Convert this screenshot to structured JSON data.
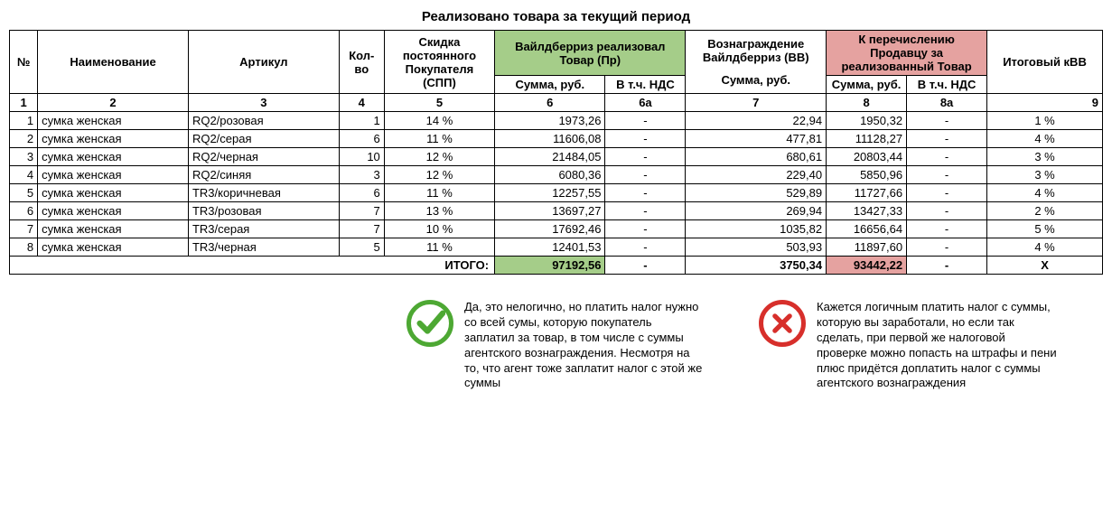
{
  "title": "Реализовано товара за текущий период",
  "colors": {
    "green_bg": "#a5cd89",
    "red_bg": "#e5a2a0",
    "green_icon": "#4da833",
    "red_icon": "#d72f2b"
  },
  "header": {
    "num": "№",
    "name": "Наименование",
    "article": "Артикул",
    "qty": "Кол-во",
    "discount": "Скидка постоянного Покупателя (СПП)",
    "wb_sold": "Вайлдберриз реализовал Товар (Пр)",
    "wb_fee": "Вознаграждение Вайлдберриз (ВВ)",
    "to_seller": "К перечислению Продавцу за реализованный Товар",
    "kvv": "Итоговый кВВ",
    "sum_rub": "Сумма, руб.",
    "inc_vat": "В т.ч. НДС"
  },
  "colnums": {
    "c1": "1",
    "c2": "2",
    "c3": "3",
    "c4": "4",
    "c5": "5",
    "c6": "6",
    "c6a": "6а",
    "c7": "7",
    "c8": "8",
    "c8a": "8а",
    "c9": "9"
  },
  "rows": [
    {
      "n": "1",
      "name": "сумка женская",
      "art": "RQ2/розовая",
      "qty": "1",
      "disc": "14 %",
      "sold": "1973,26",
      "vat1": "-",
      "fee": "22,94",
      "seller": "1950,32",
      "vat2": "-",
      "kvv": "1 %"
    },
    {
      "n": "2",
      "name": "сумка женская",
      "art": "RQ2/серая",
      "qty": "6",
      "disc": "11 %",
      "sold": "11606,08",
      "vat1": "-",
      "fee": "477,81",
      "seller": "11128,27",
      "vat2": "-",
      "kvv": "4 %"
    },
    {
      "n": "3",
      "name": "сумка женская",
      "art": "RQ2/черная",
      "qty": "10",
      "disc": "12 %",
      "sold": "21484,05",
      "vat1": "-",
      "fee": "680,61",
      "seller": "20803,44",
      "vat2": "-",
      "kvv": "3 %"
    },
    {
      "n": "4",
      "name": "сумка женская",
      "art": "RQ2/синяя",
      "qty": "3",
      "disc": "12 %",
      "sold": "6080,36",
      "vat1": "-",
      "fee": "229,40",
      "seller": "5850,96",
      "vat2": "-",
      "kvv": "3 %"
    },
    {
      "n": "5",
      "name": "сумка женская",
      "art": "TR3/коричневая",
      "qty": "6",
      "disc": "11 %",
      "sold": "12257,55",
      "vat1": "-",
      "fee": "529,89",
      "seller": "11727,66",
      "vat2": "-",
      "kvv": "4 %"
    },
    {
      "n": "6",
      "name": "сумка женская",
      "art": "TR3/розовая",
      "qty": "7",
      "disc": "13 %",
      "sold": "13697,27",
      "vat1": "-",
      "fee": "269,94",
      "seller": "13427,33",
      "vat2": "-",
      "kvv": "2 %"
    },
    {
      "n": "7",
      "name": "сумка женская",
      "art": "TR3/серая",
      "qty": "7",
      "disc": "10 %",
      "sold": "17692,46",
      "vat1": "-",
      "fee": "1035,82",
      "seller": "16656,64",
      "vat2": "-",
      "kvv": "5 %"
    },
    {
      "n": "8",
      "name": "сумка женская",
      "art": "TR3/черная",
      "qty": "5",
      "disc": "11 %",
      "sold": "12401,53",
      "vat1": "-",
      "fee": "503,93",
      "seller": "11897,60",
      "vat2": "-",
      "kvv": "4 %"
    }
  ],
  "totals": {
    "label": "ИТОГО:",
    "sold": "97192,56",
    "vat1": "-",
    "fee": "3750,34",
    "seller": "93442,22",
    "vat2": "-",
    "kvv": "X"
  },
  "notes": {
    "yes": "Да, это нелогично, но платить налог нужно со всей сумы, которую покупатель заплатил за товар, в том числе с суммы агентского вознаграждения. Несмотря на то, что агент тоже заплатит налог с этой же суммы",
    "no": "Кажется логичным платить налог с суммы, которую вы заработали, но если так сделать, при первой же налоговой проверке можно попасть на штрафы и пени плюс придётся доплатить налог с суммы агентского вознаграждения"
  }
}
